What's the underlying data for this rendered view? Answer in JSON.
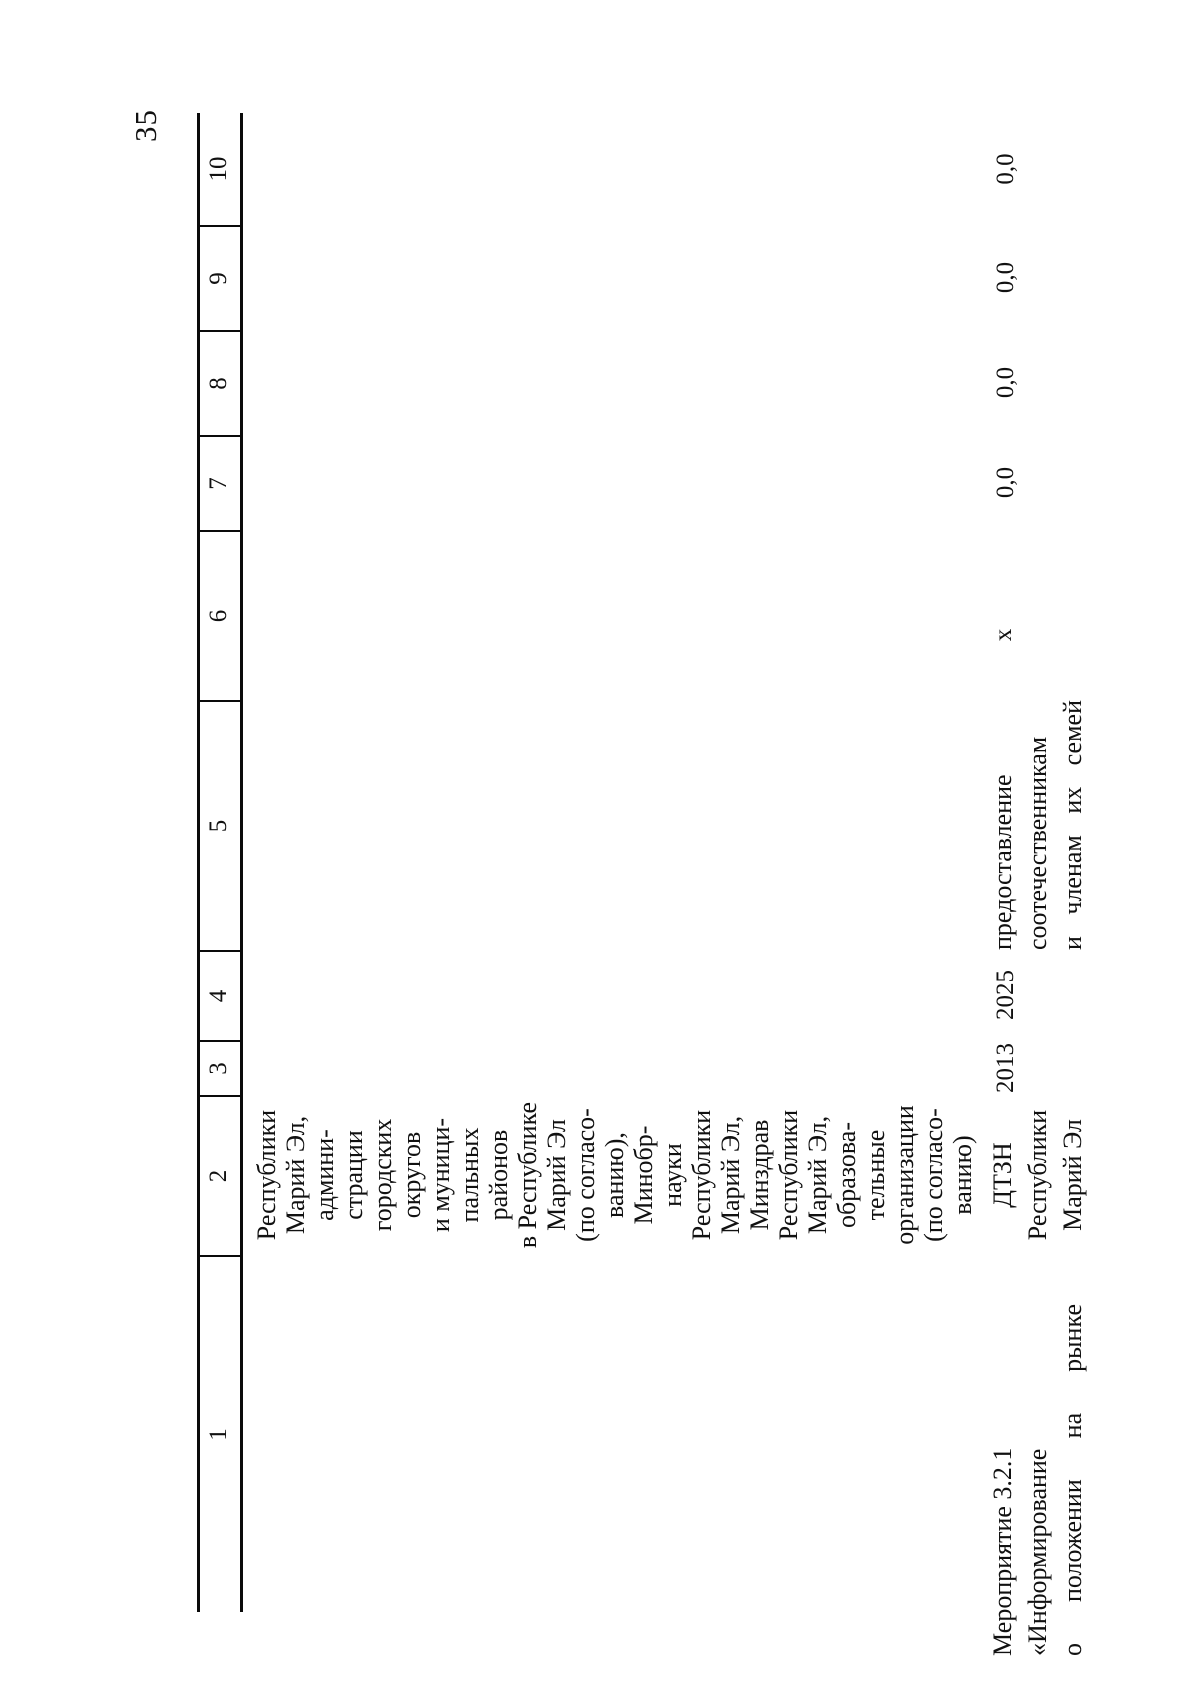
{
  "page": {
    "number": "35"
  },
  "table": {
    "columns": [
      "1",
      "2",
      "3",
      "4",
      "5",
      "6",
      "7",
      "8",
      "9",
      "10"
    ],
    "rows": {
      "continuation": {
        "executors_lines": [
          "Республики",
          "Марий Эл,",
          "админи-",
          "страции",
          "городских",
          "округов",
          "и муници-",
          "пальных",
          "районов",
          "в Республике",
          "Марий Эл",
          "(по согласо-",
          "ванию),",
          "Минобр-",
          "науки",
          "Республики",
          "Марий Эл,",
          "Минздрав",
          "Республики",
          "Марий Эл,",
          "образова-",
          "тельные",
          "организации",
          "(по согласо-",
          "ванию)"
        ]
      },
      "event": {
        "title_lines": [
          "Мероприятие 3.2.1",
          "«Информирование",
          "о положении на рынке"
        ],
        "executor_lines": [
          "ДТЗН",
          "Республики",
          "Марий Эл"
        ],
        "start_year": "2013",
        "end_year": "2025",
        "result_lines": [
          "предоставление",
          "соотечественникам",
          "и членам их семей"
        ],
        "mark": "х",
        "values": {
          "col7": "0,0",
          "col8": "0,0",
          "col9": "0,0",
          "col10": "0,0"
        }
      }
    }
  }
}
